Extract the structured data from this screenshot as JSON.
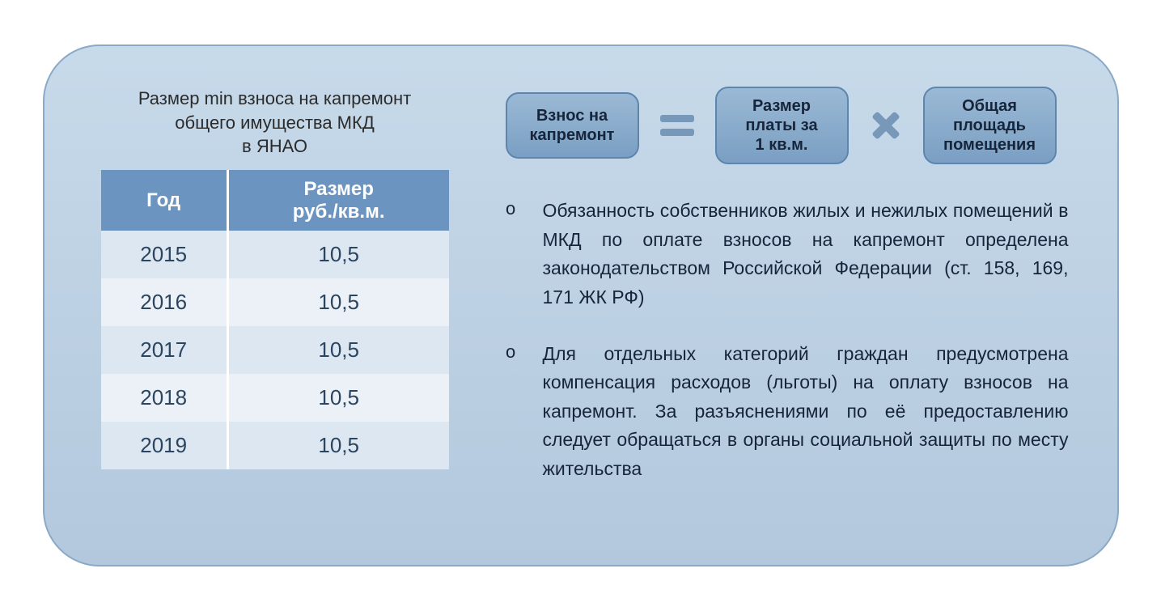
{
  "panel": {
    "background_gradient": [
      "#c7daea",
      "#b3c8dd"
    ],
    "border_color": "#8aa9c6",
    "border_radius": 70
  },
  "table": {
    "title": "Размер min взноса на капремонт\nобщего имущества МКД\nв ЯНАО",
    "columns": [
      {
        "label": "Год"
      },
      {
        "label": "Размер\nруб./кв.м."
      }
    ],
    "rows": [
      {
        "year": "2015",
        "value": "10,5"
      },
      {
        "year": "2016",
        "value": "10,5"
      },
      {
        "year": "2017",
        "value": "10,5"
      },
      {
        "year": "2018",
        "value": "10,5"
      },
      {
        "year": "2019",
        "value": "10,5"
      }
    ],
    "header_bg": "#6b94c0",
    "header_fg": "#ffffff",
    "row_even_bg": "#dde7f1",
    "row_odd_bg": "#ecf1f7",
    "cell_fg": "#2b4560"
  },
  "formula": {
    "box1": "Взнос на\nкапремонт",
    "box2": "Размер\nплаты за\n1 кв.м.",
    "box3": "Общая\nплощадь\nпомещения",
    "box_bg_gradient": [
      "#9bb9d5",
      "#7a9fc3"
    ],
    "box_border": "#5e85ad",
    "op_color": "#7798b9"
  },
  "bullets": {
    "items": [
      "Обязанность собственников жилых и нежилых помещений в МКД по оплате взносов на капремонт определена законодательством Российской Федерации (ст. 158, 169, 171 ЖК РФ)",
      "Для отдельных категорий граждан предусмотрена компенсация расходов (льготы) на оплату взносов на капремонт. За разъяснениями по её предоставлению следует обращаться в органы социальной защиты по месту жительства"
    ],
    "text_color": "#17253a",
    "fontsize": 23
  }
}
